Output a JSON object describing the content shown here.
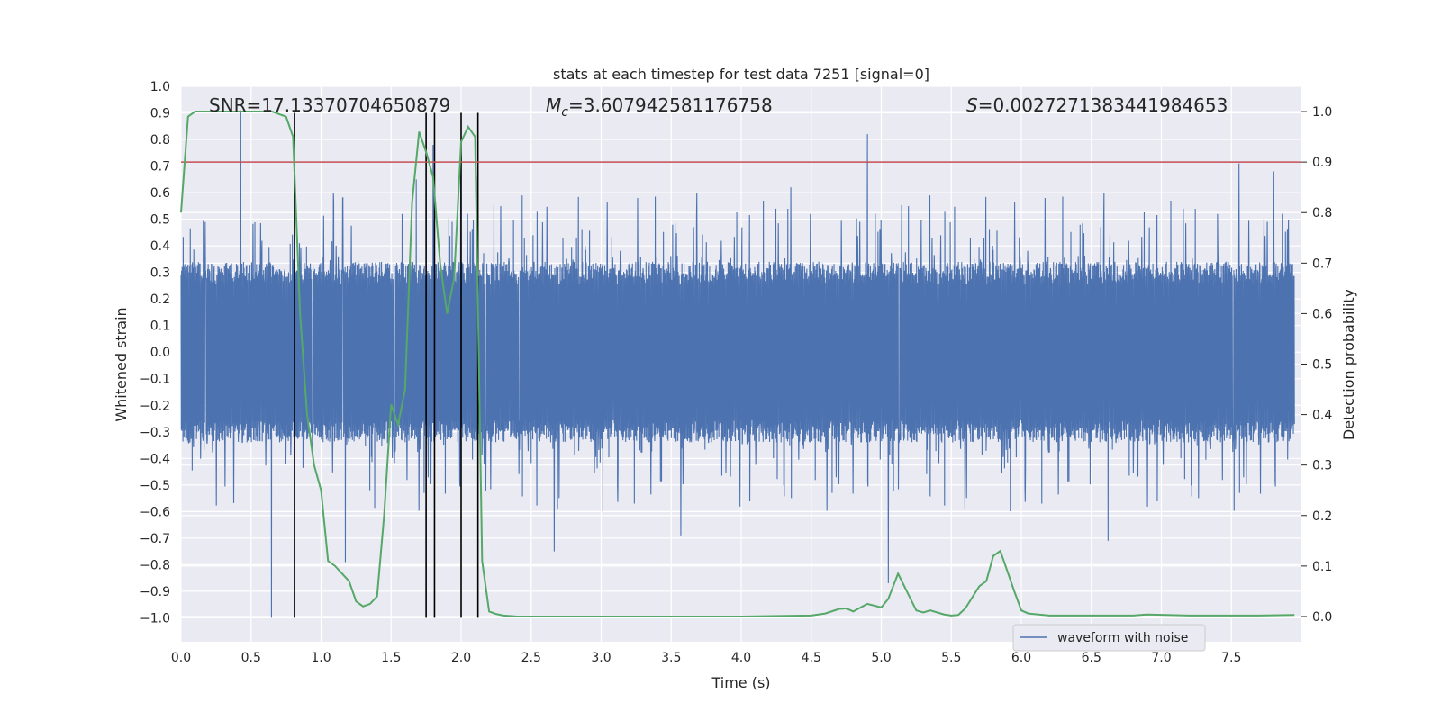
{
  "chart_data": {
    "type": "line",
    "title": "stats at each timestep for test data 7251 [signal=0]",
    "xlabel": "Time (s)",
    "ylabel": "Whitened strain",
    "ylabel_right": "Detection probability",
    "xlim": [
      0.0,
      8.0
    ],
    "ylim": [
      -1.09,
      1.0
    ],
    "ylim_right": [
      -0.05,
      1.05
    ],
    "x_ticks": [
      "0.0",
      "0.5",
      "1.0",
      "1.5",
      "2.0",
      "2.5",
      "3.0",
      "3.5",
      "4.0",
      "4.5",
      "5.0",
      "5.5",
      "6.0",
      "6.5",
      "7.0",
      "7.5"
    ],
    "y_ticks": [
      "1.0",
      "0.9",
      "0.8",
      "0.7",
      "0.6",
      "0.5",
      "0.4",
      "0.3",
      "0.2",
      "0.1",
      "0.0",
      "−0.1",
      "−0.2",
      "−0.3",
      "−0.4",
      "−0.5",
      "−0.6",
      "−0.7",
      "−0.8",
      "−0.9",
      "−1.0"
    ],
    "y_ticks_right": [
      "1.0",
      "0.9",
      "0.8",
      "0.7",
      "0.6",
      "0.5",
      "0.4",
      "0.3",
      "0.2",
      "0.1",
      "0.0"
    ],
    "grid": true,
    "legend_position": "lower-right",
    "annotations": {
      "snr": "SNR=17.13370704650879",
      "mc_symbol": "M",
      "mc_sub": "c",
      "mc_value": "=3.607942581176758",
      "s_symbol": "S",
      "s_value": "=0.0027271383441984653"
    },
    "threshold_line": {
      "y_right": 0.9,
      "color": "#c44e52"
    },
    "vertical_markers": {
      "x": [
        0.81,
        1.75,
        1.81,
        2.0,
        2.12
      ],
      "y_range": [
        -1.0,
        0.9
      ],
      "color": "#000000"
    },
    "series": [
      {
        "name": "waveform with noise",
        "color": "#4c72b0",
        "kind": "noise",
        "envelope": 0.34,
        "spikes": [
          {
            "x": 0.43,
            "y": 0.91
          },
          {
            "x": 0.65,
            "y": -1.0
          },
          {
            "x": 4.93,
            "y": 0.82
          },
          {
            "x": 5.08,
            "y": -0.87
          },
          {
            "x": 1.69,
            "y": 0.65
          },
          {
            "x": 1.81,
            "y": 0.78
          },
          {
            "x": 2.01,
            "y": 0.72
          },
          {
            "x": 2.13,
            "y": 0.66
          },
          {
            "x": 7.6,
            "y": 0.71
          },
          {
            "x": 7.85,
            "y": 0.68
          },
          {
            "x": 2.68,
            "y": -0.75
          },
          {
            "x": 3.59,
            "y": -0.69
          },
          {
            "x": 6.66,
            "y": -0.71
          },
          {
            "x": 1.18,
            "y": -0.79
          },
          {
            "x": 4.38,
            "y": 0.62
          }
        ]
      },
      {
        "name": "",
        "color": "#55a868",
        "axis": "right",
        "x": [
          0.0,
          0.05,
          0.1,
          0.15,
          0.2,
          0.3,
          0.4,
          0.5,
          0.6,
          0.65,
          0.75,
          0.8,
          0.85,
          0.9,
          0.95,
          1.0,
          1.05,
          1.1,
          1.2,
          1.25,
          1.3,
          1.35,
          1.4,
          1.45,
          1.5,
          1.55,
          1.6,
          1.65,
          1.7,
          1.75,
          1.8,
          1.85,
          1.9,
          1.95,
          2.0,
          2.05,
          2.1,
          2.15,
          2.2,
          2.25,
          2.3,
          2.35,
          2.4,
          2.5,
          3.0,
          3.5,
          4.0,
          4.5,
          4.6,
          4.7,
          4.75,
          4.8,
          4.9,
          5.0,
          5.05,
          5.12,
          5.25,
          5.3,
          5.35,
          5.45,
          5.5,
          5.55,
          5.6,
          5.7,
          5.75,
          5.8,
          5.85,
          5.95,
          6.0,
          6.05,
          6.2,
          6.5,
          6.8,
          6.9,
          7.2,
          7.5,
          7.7,
          7.95
        ],
        "y": [
          0.8,
          0.99,
          1.0,
          1.0,
          1.0,
          1.0,
          1.0,
          1.0,
          1.0,
          1.0,
          0.99,
          0.95,
          0.6,
          0.4,
          0.3,
          0.25,
          0.11,
          0.1,
          0.07,
          0.03,
          0.02,
          0.025,
          0.04,
          0.2,
          0.42,
          0.38,
          0.45,
          0.82,
          0.96,
          0.92,
          0.87,
          0.7,
          0.6,
          0.67,
          0.94,
          0.97,
          0.95,
          0.11,
          0.01,
          0.005,
          0.002,
          0.001,
          0.0,
          0.0,
          0.0,
          0.0,
          0.0,
          0.002,
          0.006,
          0.015,
          0.016,
          0.01,
          0.025,
          0.018,
          0.035,
          0.085,
          0.012,
          0.008,
          0.012,
          0.004,
          0.002,
          0.003,
          0.016,
          0.06,
          0.07,
          0.12,
          0.13,
          0.05,
          0.012,
          0.006,
          0.002,
          0.002,
          0.002,
          0.004,
          0.002,
          0.002,
          0.002,
          0.003
        ]
      }
    ]
  }
}
